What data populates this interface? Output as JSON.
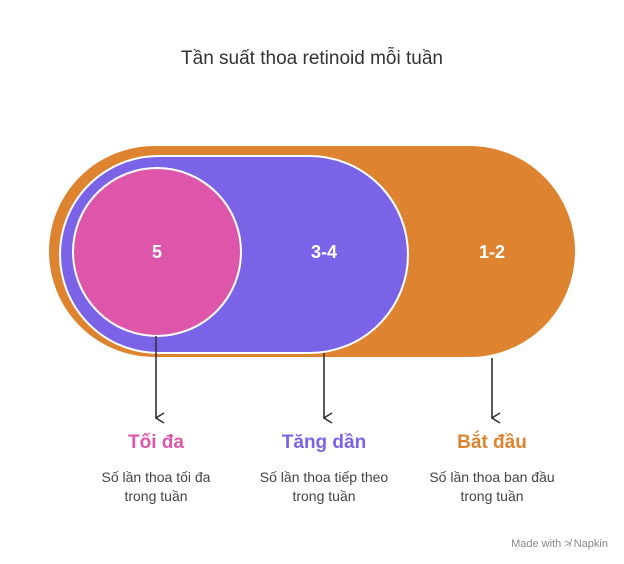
{
  "title": "Tần suất thoa retinoid mỗi tuần",
  "stages": [
    {
      "value": "5",
      "label": "Tối đa",
      "description": "Số lần thoa tối đa\ntrong tuần",
      "color": "#DE56AA"
    },
    {
      "value": "3-4",
      "label": "Tăng dần",
      "description": "Số lần thoa tiếp theo\ntrong tuần",
      "color": "#7B63E8"
    },
    {
      "value": "1-2",
      "label": "Bắt đầu",
      "description": "Số lần thoa ban đầu\ntrong tuần",
      "color": "#DE8430"
    }
  ],
  "footer": "Made with ≯ Napkin"
}
